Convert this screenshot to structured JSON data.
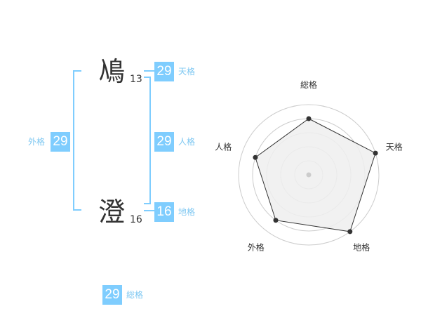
{
  "colors": {
    "box": "#7fcdfe",
    "label": "#7fc8f2",
    "radar_fill": "#efefef",
    "radar_line": "#333333",
    "ring": "#cccccc"
  },
  "name": [
    {
      "kanji": "鳰",
      "strokes": "13"
    },
    {
      "kanji": "澄",
      "strokes": "16"
    }
  ],
  "scores": {
    "tenkaku": {
      "value": "29",
      "label": "天格"
    },
    "jinkaku": {
      "value": "29",
      "label": "人格"
    },
    "chikaku": {
      "value": "16",
      "label": "地格"
    },
    "gaikaku": {
      "value": "29",
      "label": "外格"
    },
    "soukaku": {
      "value": "29",
      "label": "総格"
    }
  },
  "chart_data": {
    "type": "radar",
    "axes": [
      "総格",
      "天格",
      "地格",
      "外格",
      "人格"
    ],
    "values": [
      4,
      5,
      5,
      4,
      4
    ],
    "range": [
      0,
      5
    ],
    "rings": 5
  }
}
